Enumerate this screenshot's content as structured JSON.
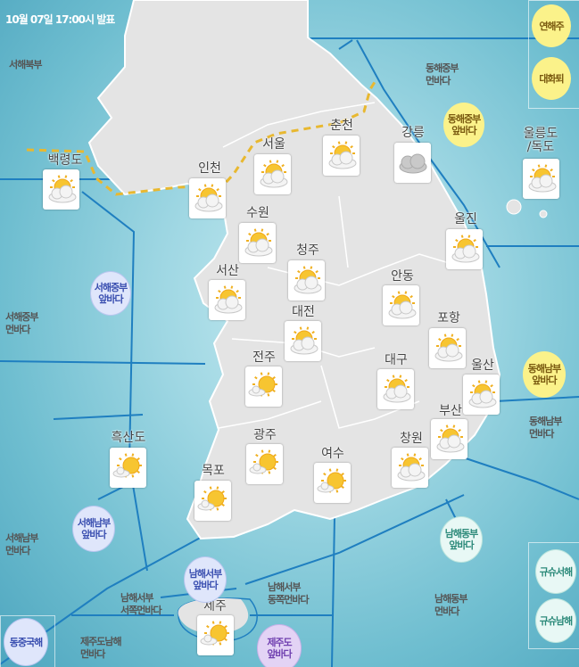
{
  "header": {
    "issued": "10월 07일 17:00시 발표"
  },
  "colors": {
    "sea": "#6fbed0",
    "land": "#e6e6e6",
    "boundary": "#1f7fc0",
    "dashed_line": "#e8b830"
  },
  "cities": [
    {
      "name": "백령도",
      "icon": "partly-cloudy-icon"
    },
    {
      "name": "인천",
      "icon": "partly-cloudy-icon"
    },
    {
      "name": "서울",
      "icon": "partly-cloudy-icon"
    },
    {
      "name": "춘천",
      "icon": "partly-cloudy-icon"
    },
    {
      "name": "강릉",
      "icon": "cloudy-icon"
    },
    {
      "name": "울릉도\n/독도",
      "icon": "partly-cloudy-icon"
    },
    {
      "name": "수원",
      "icon": "partly-cloudy-icon"
    },
    {
      "name": "울진",
      "icon": "partly-cloudy-icon"
    },
    {
      "name": "청주",
      "icon": "partly-cloudy-icon"
    },
    {
      "name": "서산",
      "icon": "partly-cloudy-icon"
    },
    {
      "name": "안동",
      "icon": "partly-cloudy-icon"
    },
    {
      "name": "대전",
      "icon": "partly-cloudy-icon"
    },
    {
      "name": "포항",
      "icon": "partly-cloudy-icon"
    },
    {
      "name": "전주",
      "icon": "mostly-sunny-icon"
    },
    {
      "name": "대구",
      "icon": "partly-cloudy-icon"
    },
    {
      "name": "울산",
      "icon": "partly-cloudy-icon"
    },
    {
      "name": "부산",
      "icon": "partly-cloudy-icon"
    },
    {
      "name": "흑산도",
      "icon": "mostly-sunny-icon"
    },
    {
      "name": "광주",
      "icon": "mostly-sunny-icon"
    },
    {
      "name": "창원",
      "icon": "partly-cloudy-icon"
    },
    {
      "name": "여수",
      "icon": "mostly-sunny-icon"
    },
    {
      "name": "목포",
      "icon": "mostly-sunny-icon"
    },
    {
      "name": "제주",
      "icon": "mostly-sunny-icon"
    }
  ],
  "sea_areas": [
    "서해북부",
    "동해중부\n먼바다",
    "서해중부\n먼바다",
    "동해남부\n먼바다",
    "서해남부\n먼바다",
    "남해서부\n서쪽먼바다",
    "남해서부\n동쪽먼바다",
    "남해동부\n먼바다",
    "제주도남해\n먼바다"
  ],
  "bubbles": [
    {
      "label": "연해주",
      "style": "yellow"
    },
    {
      "label": "대화퇴",
      "style": "yellow"
    },
    {
      "label": "동해중부\n앞바다",
      "style": "yellow"
    },
    {
      "label": "동해남부\n앞바다",
      "style": "yellow"
    },
    {
      "label": "서해중부\n앞바다",
      "style": "blue"
    },
    {
      "label": "서해남부\n앞바다",
      "style": "blue"
    },
    {
      "label": "남해서부\n앞바다",
      "style": "blue"
    },
    {
      "label": "동중국해",
      "style": "blue"
    },
    {
      "label": "남해동부\n앞바다",
      "style": "mint"
    },
    {
      "label": "규슈서해",
      "style": "mint"
    },
    {
      "label": "규슈남해",
      "style": "mint"
    },
    {
      "label": "제주도\n앞바다",
      "style": "purple"
    }
  ]
}
